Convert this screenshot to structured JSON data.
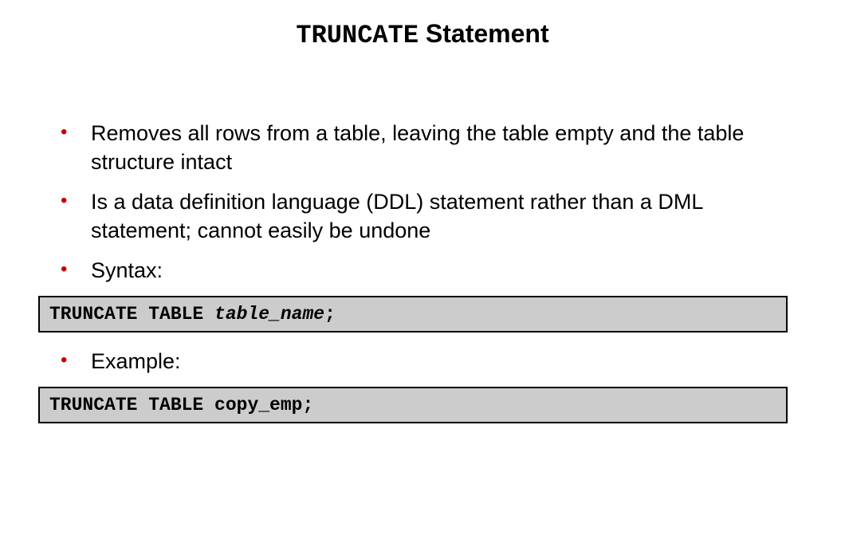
{
  "title": {
    "code_part": "TRUNCATE",
    "text_part": " Statement"
  },
  "bullets": {
    "b1": "Removes all rows from a table, leaving the table empty and the table structure intact",
    "b2": "Is a data definition language (DDL) statement rather than a DML statement; cannot easily be undone",
    "b3": "Syntax:",
    "b4": "Example:"
  },
  "code_boxes": {
    "syntax": {
      "prefix": "TRUNCATE TABLE ",
      "italic": "table_name",
      "suffix": ";"
    },
    "example": {
      "text": "TRUNCATE TABLE copy_emp;"
    }
  },
  "colors": {
    "bullet": "#cc0000",
    "code_bg": "#cccccc",
    "code_border": "#000000",
    "text": "#000000",
    "background": "#ffffff"
  }
}
